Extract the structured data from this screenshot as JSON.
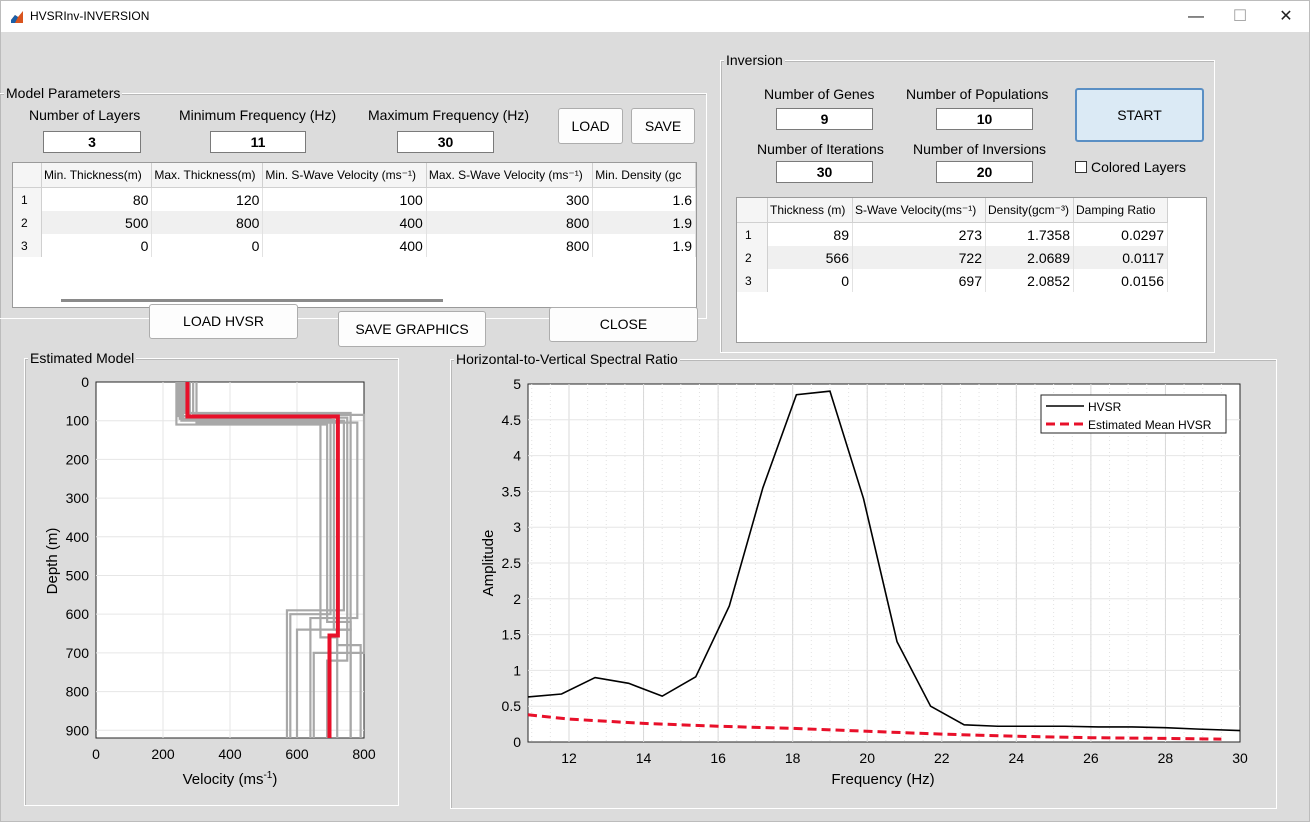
{
  "window": {
    "title": "HVSRInv-INVERSION",
    "controls": [
      "—",
      "☐",
      "✕"
    ]
  },
  "model_parameters": {
    "title": "Model Parameters",
    "num_layers_label": "Number of Layers",
    "num_layers": "3",
    "min_freq_label": "Minimum Frequency (Hz)",
    "min_freq": "11",
    "max_freq_label": "Maximum Frequency (Hz)",
    "max_freq": "30",
    "load_label": "LOAD",
    "save_label": "SAVE",
    "table": {
      "headers": [
        "",
        "Min. Thickness(m)",
        "Max. Thickness(m)",
        "Min. S-Wave Velocity (ms⁻¹)",
        "Max. S-Wave Velocity (ms⁻¹)",
        "Min. Density (gc"
      ],
      "rows": [
        [
          "1",
          "80",
          "120",
          "100",
          "300",
          "1.6"
        ],
        [
          "2",
          "500",
          "800",
          "400",
          "800",
          "1.9"
        ],
        [
          "3",
          "0",
          "0",
          "400",
          "800",
          "1.9"
        ]
      ]
    }
  },
  "buttons": {
    "load_hvsr": "LOAD HVSR",
    "save_graphics": "SAVE GRAPHICS",
    "close": "CLOSE"
  },
  "inversion": {
    "title": "Inversion",
    "genes_label": "Number of Genes",
    "genes": "9",
    "populations_label": "Number of Populations",
    "populations": "10",
    "iterations_label": "Number of Iterations",
    "iterations": "30",
    "inversions_label": "Number of Inversions",
    "inversions": "20",
    "start_label": "START",
    "colored_layers_label": "Colored Layers",
    "table": {
      "headers": [
        "",
        "Thickness (m)",
        "S-Wave Velocity(ms⁻¹)",
        "Density(gcm⁻³)",
        "Damping Ratio"
      ],
      "rows": [
        [
          "1",
          "89",
          "273",
          "1.7358",
          "0.0297"
        ],
        [
          "2",
          "566",
          "722",
          "2.0689",
          "0.0117"
        ],
        [
          "3",
          "0",
          "697",
          "2.0852",
          "0.0156"
        ]
      ]
    }
  },
  "estimated_model": {
    "title": "Estimated Model",
    "xlabel": "Velocity (ms",
    "xlabel_sup": "-1",
    "xlabel_tail": ")",
    "ylabel": "Depth (m)",
    "xticks": [
      "0",
      "200",
      "400",
      "600",
      "800"
    ],
    "yticks": [
      "0",
      "100",
      "200",
      "300",
      "400",
      "500",
      "600",
      "700",
      "800",
      "900"
    ]
  },
  "hvsr_plot": {
    "title": "Horizontal-to-Vertical Spectral Ratio",
    "xlabel": "Frequency (Hz)",
    "ylabel": "Amplitude",
    "xticks": [
      "12",
      "14",
      "16",
      "18",
      "20",
      "22",
      "24",
      "26",
      "28",
      "30"
    ],
    "yticks": [
      "0",
      "0.5",
      "1",
      "1.5",
      "2",
      "2.5",
      "3",
      "3.5",
      "4",
      "4.5",
      "5"
    ],
    "legend": [
      "HVSR",
      "Estimated Mean HVSR"
    ]
  },
  "chart_data": [
    {
      "type": "line",
      "title": "Estimated Model",
      "xlabel": "Velocity (ms-1)",
      "ylabel": "Depth (m)",
      "xlim": [
        0,
        800
      ],
      "ylim": [
        0,
        920
      ],
      "y_reversed": true,
      "series": [
        {
          "color": "#e8102a",
          "points": [
            [
              273,
              0
            ],
            [
              273,
              89
            ],
            [
              722,
              89
            ],
            [
              722,
              655
            ],
            [
              697,
              655
            ],
            [
              697,
              920
            ]
          ]
        }
      ],
      "colors": {
        "best": "#e8102a",
        "models": "#a8a8a8"
      }
    },
    {
      "type": "line",
      "title": "Horizontal-to-Vertical Spectral Ratio",
      "xlabel": "Frequency (Hz)",
      "ylabel": "Amplitude",
      "xlim": [
        10.9,
        30
      ],
      "ylim": [
        0,
        5
      ],
      "series": [
        {
          "name": "HVSR",
          "color": "#000000",
          "x": [
            10.9,
            11.8,
            12.7,
            13.6,
            14.5,
            15.4,
            16.3,
            17.2,
            18.1,
            19.0,
            19.9,
            20.8,
            21.7,
            22.6,
            23.5,
            24.4,
            25.3,
            26.2,
            27.1,
            28.0,
            28.9,
            30.0
          ],
          "y": [
            0.63,
            0.67,
            0.9,
            0.82,
            0.64,
            0.91,
            1.9,
            3.55,
            4.85,
            4.9,
            3.4,
            1.4,
            0.5,
            0.24,
            0.22,
            0.22,
            0.22,
            0.21,
            0.21,
            0.2,
            0.18,
            0.16
          ]
        },
        {
          "name": "Estimated Mean HVSR",
          "color": "#e8102a",
          "x": [
            10.9,
            12.0,
            14.0,
            16.0,
            18.0,
            20.0,
            22.0,
            24.0,
            26.0,
            28.0,
            29.5
          ],
          "y": [
            0.38,
            0.32,
            0.26,
            0.22,
            0.19,
            0.15,
            0.11,
            0.08,
            0.06,
            0.05,
            0.04
          ]
        }
      ]
    }
  ]
}
